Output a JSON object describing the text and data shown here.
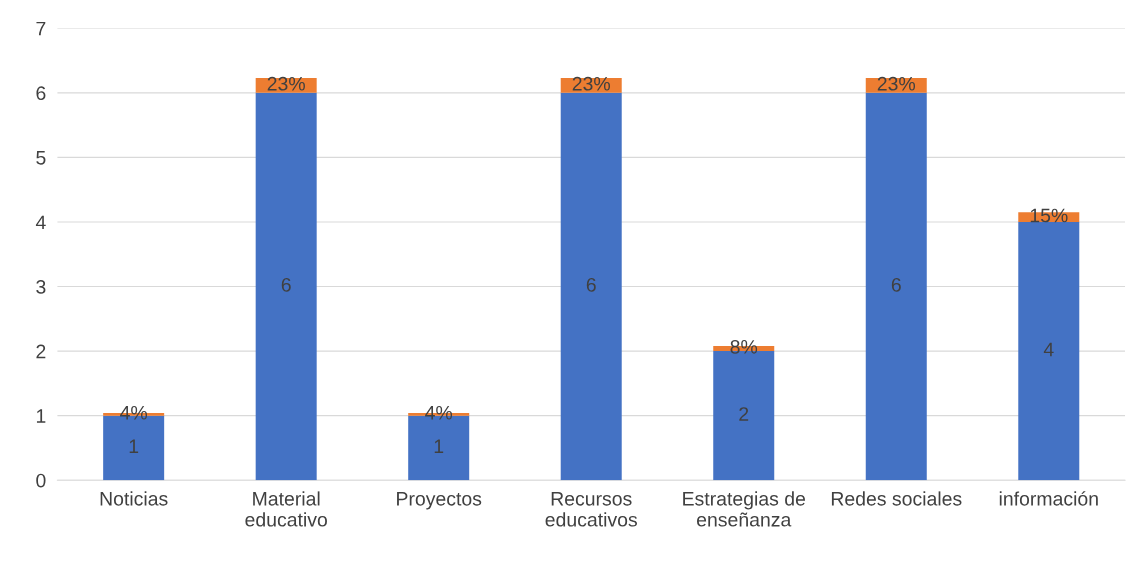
{
  "chart_data": {
    "type": "bar",
    "stacked": true,
    "categories": [
      "Noticias",
      "Material educativo",
      "Proyectos",
      "Recursos educativos",
      "Estrategias de enseñanza",
      "Redes sociales",
      "información"
    ],
    "series": [
      {
        "color": "#4472c4",
        "values": [
          1,
          6,
          1,
          6,
          2,
          6,
          4
        ],
        "value_labels": [
          "1",
          "6",
          "1",
          "6",
          "2",
          "6",
          "4"
        ]
      },
      {
        "color": "#ed7d31",
        "values": [
          0.04,
          0.23,
          0.04,
          0.23,
          0.08,
          0.23,
          0.15
        ],
        "value_labels": [
          "4%",
          "23%",
          "4%",
          "23%",
          "8%",
          "23%",
          "15%"
        ]
      }
    ],
    "ylim": [
      0,
      7
    ],
    "yticks": [
      0,
      1,
      2,
      3,
      4,
      5,
      6,
      7
    ],
    "grid": "y",
    "legend": false
  }
}
